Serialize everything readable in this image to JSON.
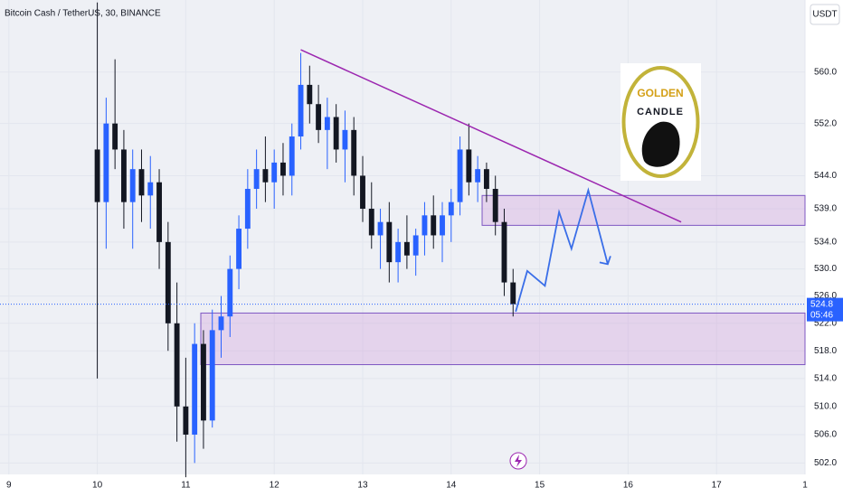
{
  "chart_data": {
    "type": "candlestick",
    "title": "Bitcoin Cash / TetherUS, 30, BINANCE",
    "currency": "USDT",
    "x": [
      10.0,
      10.1,
      10.2,
      10.3,
      10.4,
      10.5,
      10.6,
      10.7,
      10.8,
      10.9,
      11.0,
      11.1,
      11.2,
      11.3,
      11.4,
      11.5,
      11.6,
      11.7,
      11.8,
      11.9,
      12.0,
      12.1,
      12.2,
      12.3,
      12.4,
      12.5,
      12.6,
      12.7,
      12.8,
      12.9,
      13.0,
      13.1,
      13.2,
      13.3,
      13.4,
      13.5,
      13.6,
      13.7,
      13.8,
      13.9,
      14.0,
      14.1,
      14.2,
      14.3,
      14.4,
      14.5,
      14.6,
      14.7
    ],
    "open": [
      548,
      540,
      552,
      548,
      540,
      545,
      541,
      543,
      534,
      522,
      510,
      506,
      519,
      508,
      521,
      523,
      530,
      536,
      542,
      545,
      543,
      546,
      544,
      550,
      558,
      555,
      551,
      553,
      548,
      551,
      544,
      539,
      535,
      537,
      531,
      534,
      532,
      535,
      538,
      535,
      538,
      540,
      548,
      543,
      545,
      542,
      537,
      528
    ],
    "high": [
      571,
      556,
      562,
      551,
      548,
      548,
      547,
      545,
      537,
      528,
      517,
      522,
      521,
      524,
      526,
      532,
      538,
      545,
      548,
      550,
      548,
      549,
      552,
      563,
      561,
      558,
      556,
      555,
      554,
      553,
      547,
      543,
      539,
      540,
      536,
      538,
      536,
      540,
      541,
      540,
      542,
      550,
      552,
      547,
      546,
      544,
      539,
      530
    ],
    "low": [
      514,
      533,
      545,
      536,
      533,
      537,
      536,
      530,
      518,
      505,
      500,
      502,
      504,
      507,
      517,
      520,
      527,
      533,
      539,
      540,
      539,
      541,
      541,
      548,
      552,
      549,
      545,
      546,
      543,
      541,
      537,
      533,
      530,
      528,
      528,
      530,
      529,
      532,
      533,
      531,
      534,
      538,
      541,
      540,
      540,
      535,
      526,
      523
    ],
    "close": [
      540,
      552,
      548,
      540,
      545,
      541,
      543,
      534,
      522,
      510,
      506,
      519,
      508,
      521,
      523,
      530,
      536,
      542,
      545,
      543,
      546,
      544,
      550,
      558,
      555,
      551,
      553,
      548,
      551,
      544,
      539,
      535,
      537,
      531,
      534,
      532,
      535,
      538,
      535,
      538,
      540,
      548,
      543,
      545,
      542,
      537,
      528,
      524.8
    ],
    "up_color": "#2962ff",
    "down_color": "#131722",
    "xlim": [
      8.9,
      18.0
    ],
    "xticks": [
      9,
      10,
      11,
      12,
      13,
      14,
      15,
      16,
      17,
      {
        "value": 18,
        "label": "1"
      }
    ],
    "ylim": [
      500.4,
      571.4
    ],
    "log_scale": true,
    "grid": true,
    "yticks": [
      {
        "value": 560,
        "label": "560.0"
      },
      {
        "value": 552,
        "label": "552.0"
      },
      {
        "value": 544,
        "label": "544.0"
      },
      {
        "value": 539,
        "label": "539.0"
      },
      {
        "value": 534,
        "label": "534.0"
      },
      {
        "value": 530,
        "label": "530.0"
      },
      {
        "value": 526,
        "label": "526.0"
      },
      {
        "value": 522,
        "label": "522.0"
      },
      {
        "value": 518,
        "label": "518.0"
      },
      {
        "value": 514,
        "label": "514.0"
      },
      {
        "value": 510,
        "label": "510.0"
      },
      {
        "value": 506,
        "label": "506.0"
      },
      {
        "value": 502,
        "label": "502.0"
      }
    ],
    "last_price": {
      "value": 524.8,
      "label": "524.8"
    },
    "countdown": "05:46",
    "zones": [
      {
        "from": 14.35,
        "low": 536.5,
        "high": 541
      },
      {
        "from": 11.17,
        "low": 516,
        "high": 523.5
      }
    ],
    "trendline": {
      "x": [
        12.3,
        16.6
      ],
      "y": [
        563.5,
        537
      ],
      "color": "#9c27b0"
    },
    "projection": {
      "x": [
        14.73,
        14.86,
        15.06,
        15.22,
        15.36,
        15.55,
        15.77
      ],
      "y": [
        523.7,
        529.7,
        527.5,
        538.5,
        533.0,
        541.8,
        530.7
      ],
      "color": "#3a6ee8"
    },
    "logo": {
      "line1": "GOLDEN",
      "line2": "CANDLE"
    }
  }
}
